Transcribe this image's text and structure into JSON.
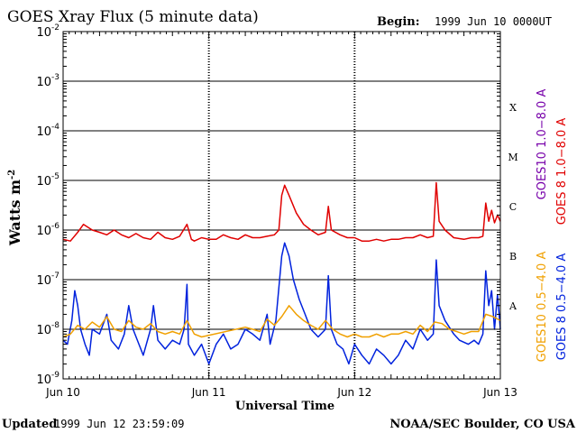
{
  "chart_data": {
    "type": "line",
    "title": "GOES Xray Flux (5 minute data)",
    "begin_label": "Begin:",
    "begin_value": "1999 Jun 10 0000UT",
    "xlabel": "Universal Time",
    "ylabel_main": "Watts m",
    "ylabel_exp": "-2",
    "y_scale": "log",
    "ylim": [
      1e-09,
      0.01
    ],
    "y_ticks": [
      {
        "base": "10",
        "exp": "-2",
        "value": 0.01
      },
      {
        "base": "10",
        "exp": "-3",
        "value": 0.001
      },
      {
        "base": "10",
        "exp": "-4",
        "value": 0.0001
      },
      {
        "base": "10",
        "exp": "-5",
        "value": 1e-05
      },
      {
        "base": "10",
        "exp": "-6",
        "value": 1e-06
      },
      {
        "base": "10",
        "exp": "-7",
        "value": 1e-07
      },
      {
        "base": "10",
        "exp": "-8",
        "value": 1e-08
      },
      {
        "base": "10",
        "exp": "-9",
        "value": 1e-09
      }
    ],
    "xlim": [
      0,
      3
    ],
    "x_ticks": [
      {
        "label": "Jun 10",
        "value": 0
      },
      {
        "label": "Jun 11",
        "value": 1
      },
      {
        "label": "Jun 12",
        "value": 2
      },
      {
        "label": "Jun 13",
        "value": 3
      }
    ],
    "flare_classes": [
      {
        "label": "X",
        "value": 0.0003
      },
      {
        "label": "M",
        "value": 3e-05
      },
      {
        "label": "C",
        "value": 3e-06
      },
      {
        "label": "B",
        "value": 3e-07
      },
      {
        "label": "A",
        "value": 3e-08
      }
    ],
    "grid": "horizontal at decades 1e-8 to 1e-3",
    "series": [
      {
        "name": "GOES 8 1.0−8.0 A",
        "color": "#e00000",
        "points": [
          [
            0.0,
            6.5e-07
          ],
          [
            0.05,
            6e-07
          ],
          [
            0.1,
            9e-07
          ],
          [
            0.14,
            1.3e-06
          ],
          [
            0.2,
            1e-06
          ],
          [
            0.25,
            9e-07
          ],
          [
            0.3,
            8e-07
          ],
          [
            0.35,
            1e-06
          ],
          [
            0.4,
            8e-07
          ],
          [
            0.45,
            7e-07
          ],
          [
            0.5,
            8.5e-07
          ],
          [
            0.55,
            7e-07
          ],
          [
            0.6,
            6.5e-07
          ],
          [
            0.65,
            9e-07
          ],
          [
            0.7,
            7e-07
          ],
          [
            0.75,
            6.5e-07
          ],
          [
            0.8,
            7.5e-07
          ],
          [
            0.85,
            1.3e-06
          ],
          [
            0.88,
            6.5e-07
          ],
          [
            0.9,
            6e-07
          ],
          [
            0.95,
            7e-07
          ],
          [
            1.0,
            6.5e-07
          ],
          [
            1.05,
            6.5e-07
          ],
          [
            1.1,
            8e-07
          ],
          [
            1.15,
            7e-07
          ],
          [
            1.2,
            6.5e-07
          ],
          [
            1.25,
            8e-07
          ],
          [
            1.3,
            7e-07
          ],
          [
            1.35,
            7e-07
          ],
          [
            1.4,
            7.5e-07
          ],
          [
            1.45,
            8e-07
          ],
          [
            1.48,
            1e-06
          ],
          [
            1.5,
            5e-06
          ],
          [
            1.52,
            8e-06
          ],
          [
            1.55,
            5e-06
          ],
          [
            1.6,
            2.2e-06
          ],
          [
            1.65,
            1.3e-06
          ],
          [
            1.7,
            1e-06
          ],
          [
            1.75,
            8e-07
          ],
          [
            1.8,
            9e-07
          ],
          [
            1.82,
            3e-06
          ],
          [
            1.84,
            1e-06
          ],
          [
            1.9,
            8e-07
          ],
          [
            1.95,
            7e-07
          ],
          [
            2.0,
            7e-07
          ],
          [
            2.05,
            6e-07
          ],
          [
            2.1,
            6e-07
          ],
          [
            2.15,
            6.5e-07
          ],
          [
            2.2,
            6e-07
          ],
          [
            2.25,
            6.5e-07
          ],
          [
            2.3,
            6.5e-07
          ],
          [
            2.35,
            7e-07
          ],
          [
            2.4,
            7e-07
          ],
          [
            2.45,
            8e-07
          ],
          [
            2.5,
            7e-07
          ],
          [
            2.54,
            7.5e-07
          ],
          [
            2.56,
            9e-06
          ],
          [
            2.58,
            1.5e-06
          ],
          [
            2.62,
            1e-06
          ],
          [
            2.68,
            7e-07
          ],
          [
            2.75,
            6.5e-07
          ],
          [
            2.8,
            7e-07
          ],
          [
            2.85,
            7e-07
          ],
          [
            2.88,
            7.5e-07
          ],
          [
            2.9,
            3.5e-06
          ],
          [
            2.92,
            1.5e-06
          ],
          [
            2.94,
            2.5e-06
          ],
          [
            2.96,
            1.4e-06
          ],
          [
            2.98,
            2e-06
          ],
          [
            3.0,
            1.5e-06
          ]
        ]
      },
      {
        "name": "GOES10 1.0−8.0 A",
        "color": "#7700aa",
        "points": []
      },
      {
        "name": "GOES 8 0.5−4.0 A",
        "color": "#0022dd",
        "points": [
          [
            0.0,
            6e-09
          ],
          [
            0.03,
            5e-09
          ],
          [
            0.06,
            1.5e-08
          ],
          [
            0.08,
            6e-08
          ],
          [
            0.1,
            3e-08
          ],
          [
            0.12,
            1e-08
          ],
          [
            0.15,
            5e-09
          ],
          [
            0.18,
            3e-09
          ],
          [
            0.2,
            1e-08
          ],
          [
            0.25,
            8e-09
          ],
          [
            0.3,
            2e-08
          ],
          [
            0.33,
            6e-09
          ],
          [
            0.38,
            4e-09
          ],
          [
            0.42,
            8e-09
          ],
          [
            0.45,
            3e-08
          ],
          [
            0.48,
            1e-08
          ],
          [
            0.52,
            5e-09
          ],
          [
            0.55,
            3e-09
          ],
          [
            0.6,
            1e-08
          ],
          [
            0.62,
            3e-08
          ],
          [
            0.65,
            6e-09
          ],
          [
            0.7,
            4e-09
          ],
          [
            0.75,
            6e-09
          ],
          [
            0.8,
            5e-09
          ],
          [
            0.83,
            1e-08
          ],
          [
            0.85,
            8e-08
          ],
          [
            0.86,
            5e-09
          ],
          [
            0.9,
            3e-09
          ],
          [
            0.95,
            5e-09
          ],
          [
            1.0,
            2e-09
          ],
          [
            1.05,
            5e-09
          ],
          [
            1.1,
            8e-09
          ],
          [
            1.15,
            4e-09
          ],
          [
            1.2,
            5e-09
          ],
          [
            1.25,
            1e-08
          ],
          [
            1.3,
            8e-09
          ],
          [
            1.35,
            6e-09
          ],
          [
            1.4,
            2e-08
          ],
          [
            1.42,
            5e-09
          ],
          [
            1.46,
            1.5e-08
          ],
          [
            1.5,
            3e-07
          ],
          [
            1.52,
            5.5e-07
          ],
          [
            1.55,
            3e-07
          ],
          [
            1.58,
            1e-07
          ],
          [
            1.62,
            4e-08
          ],
          [
            1.66,
            2e-08
          ],
          [
            1.7,
            1e-08
          ],
          [
            1.75,
            7e-09
          ],
          [
            1.8,
            1e-08
          ],
          [
            1.82,
            1.2e-07
          ],
          [
            1.84,
            1e-08
          ],
          [
            1.88,
            5e-09
          ],
          [
            1.92,
            4e-09
          ],
          [
            1.96,
            2e-09
          ],
          [
            2.0,
            5e-09
          ],
          [
            2.05,
            3e-09
          ],
          [
            2.1,
            2e-09
          ],
          [
            2.15,
            4e-09
          ],
          [
            2.2,
            3e-09
          ],
          [
            2.25,
            2e-09
          ],
          [
            2.3,
            3e-09
          ],
          [
            2.35,
            6e-09
          ],
          [
            2.4,
            4e-09
          ],
          [
            2.45,
            1e-08
          ],
          [
            2.5,
            6e-09
          ],
          [
            2.54,
            8e-09
          ],
          [
            2.56,
            2.5e-07
          ],
          [
            2.58,
            3e-08
          ],
          [
            2.62,
            1.5e-08
          ],
          [
            2.68,
            8e-09
          ],
          [
            2.72,
            6e-09
          ],
          [
            2.78,
            5e-09
          ],
          [
            2.82,
            6e-09
          ],
          [
            2.85,
            5e-09
          ],
          [
            2.88,
            8e-09
          ],
          [
            2.9,
            1.5e-07
          ],
          [
            2.92,
            3e-08
          ],
          [
            2.94,
            6e-08
          ],
          [
            2.96,
            1e-08
          ],
          [
            2.98,
            5e-08
          ],
          [
            3.0,
            1e-08
          ]
        ]
      },
      {
        "name": "GOES10 0.5−4.0 A",
        "color": "#f0a000",
        "points": [
          [
            0.0,
            7e-09
          ],
          [
            0.05,
            8e-09
          ],
          [
            0.1,
            1.2e-08
          ],
          [
            0.15,
            1e-08
          ],
          [
            0.2,
            1.4e-08
          ],
          [
            0.25,
            1.1e-08
          ],
          [
            0.3,
            1.8e-08
          ],
          [
            0.35,
            1e-08
          ],
          [
            0.4,
            9e-09
          ],
          [
            0.45,
            1.5e-08
          ],
          [
            0.5,
            1.1e-08
          ],
          [
            0.55,
            1e-08
          ],
          [
            0.6,
            1.3e-08
          ],
          [
            0.65,
            9e-09
          ],
          [
            0.7,
            8e-09
          ],
          [
            0.75,
            9e-09
          ],
          [
            0.8,
            8e-09
          ],
          [
            0.85,
            1.5e-08
          ],
          [
            0.9,
            8e-09
          ],
          [
            0.95,
            7e-09
          ],
          [
            1.25,
            1.1e-08
          ],
          [
            1.3,
            1e-08
          ],
          [
            1.35,
            9e-09
          ],
          [
            1.4,
            1.6e-08
          ],
          [
            1.45,
            1.2e-08
          ],
          [
            1.5,
            1.8e-08
          ],
          [
            1.55,
            3e-08
          ],
          [
            1.6,
            2e-08
          ],
          [
            1.65,
            1.5e-08
          ],
          [
            1.7,
            1.2e-08
          ],
          [
            1.75,
            1e-08
          ],
          [
            1.8,
            1.5e-08
          ],
          [
            1.85,
            1e-08
          ],
          [
            1.9,
            8e-09
          ],
          [
            1.95,
            7e-09
          ],
          [
            2.0,
            8e-09
          ],
          [
            2.05,
            7e-09
          ],
          [
            2.1,
            7e-09
          ],
          [
            2.15,
            8e-09
          ],
          [
            2.2,
            7e-09
          ],
          [
            2.25,
            8e-09
          ],
          [
            2.3,
            8e-09
          ],
          [
            2.35,
            9e-09
          ],
          [
            2.4,
            8e-09
          ],
          [
            2.45,
            1.2e-08
          ],
          [
            2.5,
            9e-09
          ],
          [
            2.55,
            1.4e-08
          ],
          [
            2.6,
            1.3e-08
          ],
          [
            2.65,
            1e-08
          ],
          [
            2.7,
            9e-09
          ],
          [
            2.75,
            8e-09
          ],
          [
            2.8,
            9e-09
          ],
          [
            2.85,
            9e-09
          ],
          [
            2.9,
            2e-08
          ],
          [
            2.95,
            1.8e-08
          ],
          [
            3.0,
            1.5e-08
          ]
        ]
      }
    ],
    "footer_left_label": "Updated",
    "footer_left_value": "1999 Jun 12 23:59:09",
    "footer_right": "NOAA/SEC Boulder, CO USA"
  }
}
